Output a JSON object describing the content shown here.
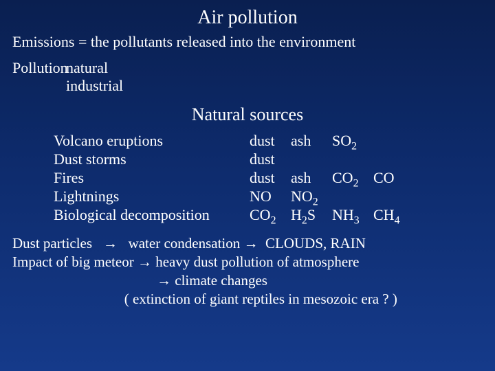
{
  "title": "Air  pollution",
  "emissions_line": "Emissions = the pollutants released into the environment",
  "pollution_label": "Pollution",
  "pollution_types": {
    "a": "natural",
    "b": "industrial"
  },
  "subtitle": "Natural sources",
  "sources": [
    {
      "name": "Volcano eruptions",
      "p1": "dust",
      "p2": "ash",
      "p3": "SO",
      "p3_sub": "2",
      "p4": "",
      "p4_sub": ""
    },
    {
      "name": "Dust storms",
      "p1": "dust",
      "p2": "",
      "p3": "",
      "p3_sub": "",
      "p4": "",
      "p4_sub": ""
    },
    {
      "name": "Fires",
      "p1": "dust",
      "p2": "ash",
      "p3": "CO",
      "p3_sub": "2",
      "p4": "CO",
      "p4_sub": ""
    },
    {
      "name": "Lightnings",
      "p1": "NO",
      "p2": "NO",
      "p2_sub": "2",
      "p3": "",
      "p3_sub": "",
      "p4": "",
      "p4_sub": ""
    },
    {
      "name": "Biological decomposition",
      "p1": "CO",
      "p1_sub": "2",
      "p2": "H",
      "p2_sub": "2",
      "p2_tail": "S",
      "p3": "NH",
      "p3_sub": "3",
      "p4": "CH",
      "p4_sub": "4"
    }
  ],
  "bottom": {
    "dust_a": "Dust particles   ",
    "dust_b": "   water condensation ",
    "dust_c": "  CLOUDS, RAIN",
    "meteor_a": "Impact of big meteor ",
    "meteor_b": " heavy dust pollution of atmosphere",
    "meteor_c_pad": "                                        ",
    "meteor_c": " climate changes",
    "meteor_d_pad": "                               ",
    "meteor_d": "( extinction of giant reptiles in mesozoic era ? )"
  },
  "arrow": "→",
  "colors": {
    "text": "#ffffff",
    "bg_top": "#0a1f50",
    "bg_bot": "#153a8a"
  },
  "typography": {
    "title_pt": 28,
    "subtitle_pt": 26,
    "body_pt": 22,
    "bottom_pt": 21,
    "family": "Times New Roman"
  }
}
